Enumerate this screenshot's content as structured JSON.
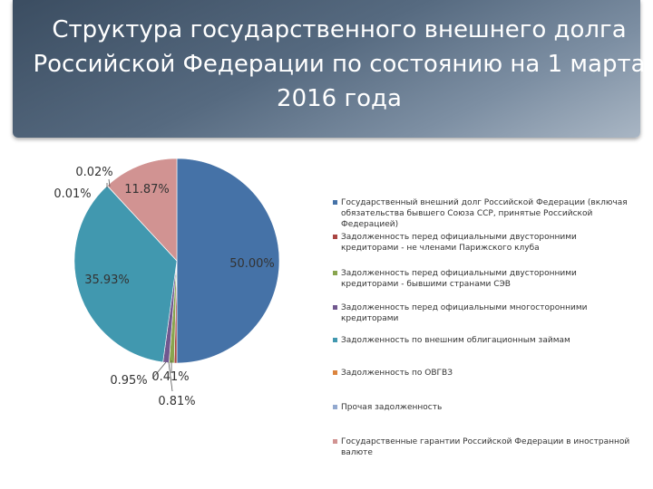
{
  "title": "Структура государственного внешнего долга Российской Федерации по состоянию на 1 марта 2016 года",
  "chart_data": {
    "type": "pie",
    "start_angle_deg": 0,
    "direction": "clockwise",
    "legend_position": "right",
    "slices": [
      {
        "label": "Государственный внешний долг Российской Федерации (включая обязательства бывшего Союза ССР, принятые Российской Федерацией)",
        "value": 50.0,
        "value_label": "50.00%",
        "color": "#4572a7"
      },
      {
        "label": "Задолженность перед официальными двусторонними кредиторами - не членами Парижского клуба",
        "value": 0.41,
        "value_label": "0.41%",
        "color": "#aa4643"
      },
      {
        "label": "Задолженность перед официальными двусторонними кредиторами - бывшими странами СЭВ",
        "value": 0.81,
        "value_label": "0.81%",
        "color": "#89a54e"
      },
      {
        "label": "Задолженность перед официальными многосторонними кредиторами",
        "value": 0.95,
        "value_label": "0.95%",
        "color": "#71588f"
      },
      {
        "label": "Задолженность по внешним облигационным займам",
        "value": 35.93,
        "value_label": "35.93%",
        "color": "#4198af"
      },
      {
        "label": "Задолженность по ОВГВЗ",
        "value": 0.01,
        "value_label": "0.01%",
        "color": "#db843d"
      },
      {
        "label": "Прочая задолженность",
        "value": 0.02,
        "value_label": "0.02%",
        "color": "#93a9cf"
      },
      {
        "label": "Государственные гарантии Российской Федерации в иностранной валюте",
        "value": 11.87,
        "value_label": "11.87%",
        "color": "#d19392"
      }
    ]
  }
}
